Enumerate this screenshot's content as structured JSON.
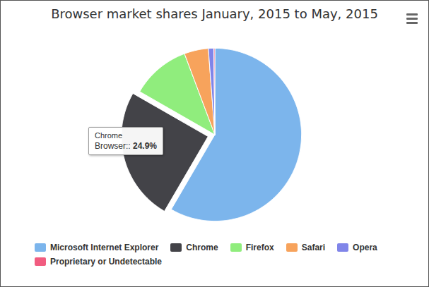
{
  "chart_data": {
    "type": "pie",
    "title": "Browser market shares January, 2015 to May, 2015",
    "categories": [
      "Microsoft Internet Explorer",
      "Chrome",
      "Firefox",
      "Safari",
      "Opera",
      "Proprietary or Undetectable"
    ],
    "values": [
      58.4,
      24.9,
      11.0,
      4.5,
      1.0,
      0.2
    ],
    "colors": [
      "#7cb5ec",
      "#434348",
      "#90ed7d",
      "#f7a35c",
      "#8085e9",
      "#f15c80"
    ],
    "legend": "bottom",
    "annotations": [
      {
        "category": "Chrome",
        "text": "Browser::",
        "label": "24.9%"
      }
    ]
  }
}
